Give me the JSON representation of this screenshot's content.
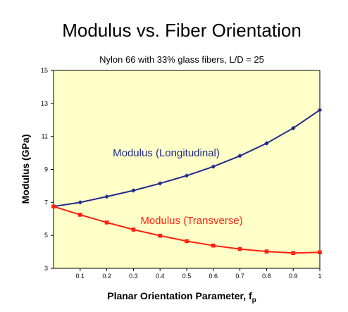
{
  "chart_data": {
    "type": "line",
    "title": "Modulus vs. Fiber Orientation",
    "subtitle": "Nylon 66 with 33% glass fibers, L/D = 25",
    "xlabel": "Planar Orientation Parameter, f",
    "xlabel_subscript": "p",
    "ylabel": "Modulus  (GPa)",
    "xlim": [
      0,
      1
    ],
    "ylim": [
      3,
      15
    ],
    "x_ticks": [
      "0.1",
      "0.2",
      "0.3",
      "0.4",
      "0.5",
      "0.6",
      "0.7",
      "0.8",
      "0.9",
      "1"
    ],
    "y_ticks": [
      "3",
      "5",
      "7",
      "9",
      "11",
      "13",
      "15"
    ],
    "plot_background": "#ffffc8",
    "x": [
      0,
      0.1,
      0.2,
      0.3,
      0.4,
      0.5,
      0.6,
      0.7,
      0.8,
      0.9,
      1.0
    ],
    "series": [
      {
        "annotation": "Modulus (Longitudinal)",
        "color": "#1f2a8c",
        "marker": "diamond",
        "values": [
          6.75,
          7.0,
          7.35,
          7.72,
          8.15,
          8.62,
          9.17,
          9.82,
          10.58,
          11.5,
          12.6
        ]
      },
      {
        "annotation": "Modulus (Transverse)",
        "color": "#ff2010",
        "marker": "square",
        "values": [
          6.75,
          6.25,
          5.78,
          5.35,
          4.98,
          4.65,
          4.38,
          4.17,
          4.02,
          3.93,
          3.97
        ]
      }
    ]
  }
}
